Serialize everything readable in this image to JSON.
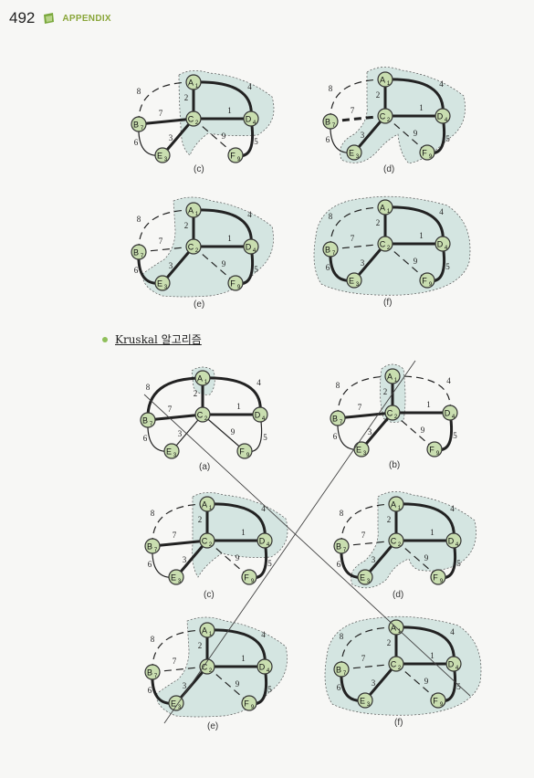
{
  "header": {
    "page_number": "492",
    "label": "APPENDIX"
  },
  "section": {
    "bullet": "•",
    "title": "Kruskal 알고리즘"
  },
  "graph_labels": {
    "top": [
      "(c)",
      "(d)",
      "(e)",
      "(f)"
    ],
    "kruskal": [
      "(a)",
      "(b)",
      "(c)",
      "(d)",
      "(e)",
      "(f)"
    ]
  },
  "graph": {
    "nodes": [
      {
        "id": "A",
        "label": "A",
        "sub": "1"
      },
      {
        "id": "B",
        "label": "B",
        "sub": "7"
      },
      {
        "id": "C",
        "label": "C",
        "sub": "2"
      },
      {
        "id": "D",
        "label": "D",
        "sub": "4"
      },
      {
        "id": "E",
        "label": "E",
        "sub": "3"
      },
      {
        "id": "F",
        "label": "F",
        "sub": "9"
      }
    ],
    "edge_weights": {
      "AB": "8",
      "AD": "4",
      "AC": "2",
      "BC": "7",
      "CD": "1",
      "CE": "3",
      "CF": "9",
      "BE": "6",
      "DF": "5"
    }
  },
  "colors": {
    "node_fill": "#c9deb0",
    "region_fill": "#d4e5e1",
    "accent": "#8aa63a"
  }
}
